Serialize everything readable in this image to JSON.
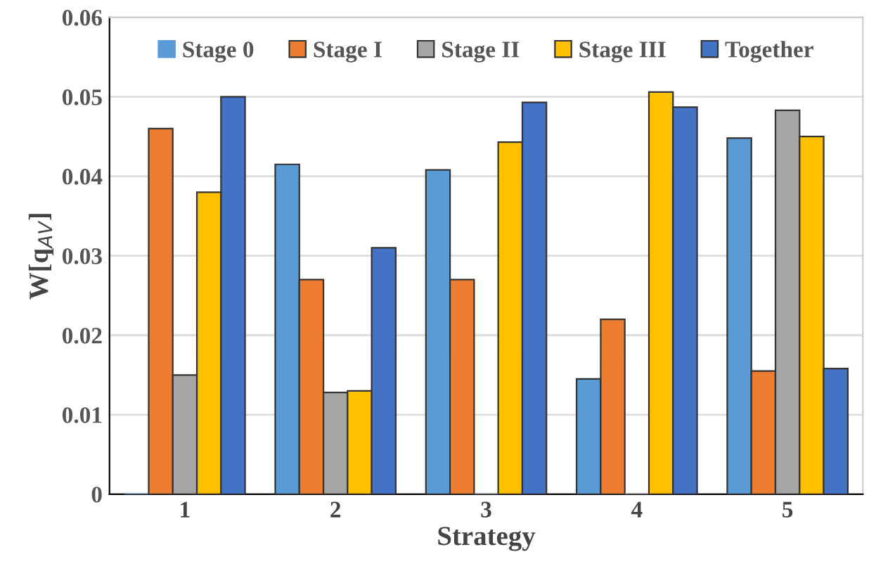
{
  "chart_data": {
    "type": "bar",
    "xlabel": "Strategy",
    "ylabel": "W[q$_{AV}$]",
    "categories": [
      "1",
      "2",
      "3",
      "4",
      "5"
    ],
    "series": [
      {
        "name": "Stage 0",
        "color": "#5b9bd5",
        "values": [
          0,
          0.0415,
          0.0408,
          0.0145,
          0.0448
        ]
      },
      {
        "name": "Stage I",
        "color": "#ed7d31",
        "values": [
          0.046,
          0.027,
          0.027,
          0.022,
          0.0155
        ]
      },
      {
        "name": "Stage II",
        "color": "#a5a5a5",
        "values": [
          0.015,
          0.0128,
          0,
          0,
          0.0483
        ]
      },
      {
        "name": "Stage III",
        "color": "#ffc000",
        "values": [
          0.038,
          0.013,
          0.0443,
          0.0506,
          0.045
        ]
      },
      {
        "name": "Together",
        "color": "#4472c4",
        "values": [
          0.05,
          0.031,
          0.0493,
          0.0487,
          0.0158
        ]
      }
    ],
    "ylim": [
      0,
      0.06
    ],
    "yticks": [
      0,
      0.01,
      0.02,
      0.03,
      0.04,
      0.05,
      0.06
    ],
    "grid": "y",
    "legend": "top"
  }
}
